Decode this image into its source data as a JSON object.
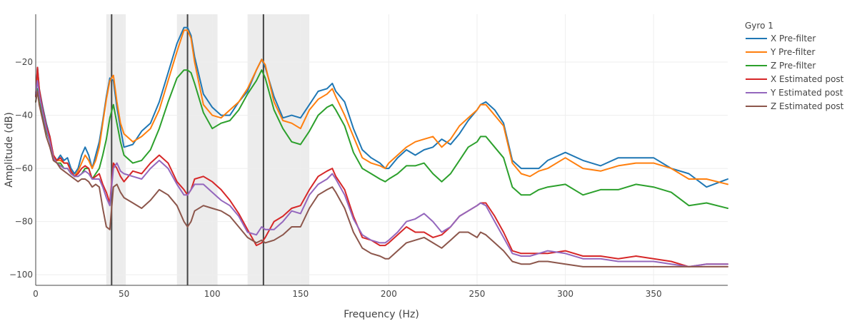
{
  "chart_data": {
    "type": "line",
    "xlabel": "Frequency (Hz)",
    "ylabel": "Amplitude (dB)",
    "xlim": [
      0,
      392
    ],
    "ylim": [
      -104,
      -2
    ],
    "xticks": [
      0,
      50,
      100,
      150,
      200,
      250,
      300,
      350
    ],
    "yticks": [
      -20,
      -40,
      -60,
      -80,
      -100
    ],
    "ytick_labels": [
      "−20",
      "−40",
      "−60",
      "−80",
      "−100"
    ],
    "grid": true,
    "legend_title": "Gyro 1",
    "legend_position": "top-right, outside plot",
    "shaded_bands": [
      {
        "from": 40,
        "to": 51
      },
      {
        "from": 80,
        "to": 103
      },
      {
        "from": 120,
        "to": 155
      }
    ],
    "vertical_lines": [
      43,
      86,
      129
    ],
    "series": [
      {
        "name": "X Pre-filter",
        "color": "#1f77b4",
        "x": [
          0,
          1,
          2,
          4,
          6,
          8,
          10,
          12,
          14,
          16,
          18,
          20,
          22,
          24,
          26,
          28,
          30,
          32,
          34,
          36,
          38,
          40,
          42,
          44,
          46,
          48,
          50,
          55,
          60,
          65,
          70,
          75,
          80,
          84,
          86,
          88,
          90,
          95,
          100,
          105,
          110,
          115,
          120,
          125,
          128,
          130,
          135,
          140,
          145,
          150,
          155,
          160,
          165,
          168,
          170,
          175,
          180,
          185,
          190,
          195,
          198,
          200,
          205,
          210,
          215,
          220,
          225,
          230,
          235,
          240,
          245,
          250,
          252,
          255,
          260,
          265,
          270,
          275,
          280,
          285,
          290,
          300,
          310,
          320,
          330,
          340,
          350,
          360,
          370,
          380,
          392
        ],
        "y": [
          -33,
          -22,
          -30,
          -37,
          -43,
          -48,
          -55,
          -57,
          -55,
          -57,
          -56,
          -60,
          -62,
          -60,
          -55,
          -52,
          -55,
          -60,
          -55,
          -50,
          -42,
          -33,
          -26,
          -27,
          -37,
          -45,
          -52,
          -51,
          -46,
          -43,
          -35,
          -24,
          -13,
          -7,
          -7,
          -10,
          -18,
          -32,
          -37,
          -40,
          -40,
          -35,
          -31,
          -23,
          -19,
          -22,
          -33,
          -41,
          -40,
          -41,
          -36,
          -31,
          -30,
          -28,
          -31,
          -35,
          -45,
          -53,
          -56,
          -58,
          -60,
          -60,
          -56,
          -53,
          -55,
          -53,
          -52,
          -49,
          -51,
          -47,
          -42,
          -38,
          -36,
          -35,
          -38,
          -43,
          -57,
          -60,
          -60,
          -60,
          -57,
          -54,
          -57,
          -59,
          -56,
          -56,
          -56,
          -60,
          -62,
          -67,
          -64
        ]
      },
      {
        "name": "Y Pre-filter",
        "color": "#ff7f0e",
        "x": [
          0,
          1,
          2,
          4,
          6,
          8,
          10,
          12,
          14,
          16,
          18,
          20,
          22,
          24,
          26,
          28,
          30,
          32,
          34,
          36,
          38,
          40,
          42,
          44,
          46,
          48,
          50,
          55,
          60,
          65,
          70,
          75,
          80,
          84,
          86,
          88,
          90,
          95,
          100,
          105,
          110,
          115,
          120,
          125,
          128,
          130,
          135,
          140,
          145,
          150,
          155,
          160,
          165,
          168,
          170,
          175,
          180,
          185,
          190,
          195,
          198,
          200,
          205,
          210,
          215,
          220,
          225,
          230,
          235,
          240,
          245,
          250,
          252,
          255,
          260,
          265,
          270,
          275,
          280,
          285,
          290,
          300,
          310,
          320,
          330,
          340,
          350,
          360,
          370,
          380,
          392
        ],
        "y": [
          -32,
          -24,
          -32,
          -38,
          -44,
          -50,
          -55,
          -57,
          -57,
          -58,
          -58,
          -61,
          -63,
          -61,
          -58,
          -55,
          -57,
          -60,
          -57,
          -52,
          -43,
          -34,
          -27,
          -25,
          -35,
          -43,
          -47,
          -50,
          -48,
          -45,
          -38,
          -27,
          -16,
          -8,
          -8,
          -11,
          -20,
          -36,
          -40,
          -41,
          -38,
          -35,
          -30,
          -23,
          -19,
          -21,
          -35,
          -42,
          -43,
          -45,
          -38,
          -34,
          -32,
          -30,
          -33,
          -40,
          -48,
          -56,
          -58,
          -59,
          -60,
          -58,
          -55,
          -52,
          -50,
          -49,
          -48,
          -52,
          -49,
          -44,
          -41,
          -38,
          -36,
          -36,
          -40,
          -44,
          -58,
          -62,
          -63,
          -61,
          -60,
          -56,
          -60,
          -61,
          -59,
          -58,
          -58,
          -60,
          -64,
          -64,
          -66
        ]
      },
      {
        "name": "Z Pre-filter",
        "color": "#2ca02c",
        "x": [
          0,
          1,
          2,
          4,
          6,
          8,
          10,
          12,
          14,
          16,
          18,
          20,
          22,
          24,
          26,
          28,
          30,
          32,
          34,
          36,
          38,
          40,
          42,
          44,
          46,
          48,
          50,
          55,
          60,
          65,
          70,
          75,
          80,
          84,
          86,
          88,
          90,
          95,
          100,
          105,
          110,
          115,
          120,
          125,
          128,
          130,
          135,
          140,
          145,
          150,
          155,
          160,
          165,
          168,
          170,
          175,
          180,
          185,
          190,
          195,
          198,
          200,
          205,
          210,
          215,
          220,
          225,
          230,
          235,
          240,
          245,
          250,
          252,
          255,
          260,
          265,
          270,
          275,
          280,
          285,
          290,
          300,
          310,
          320,
          330,
          340,
          350,
          360,
          370,
          380,
          392
        ],
        "y": [
          -35,
          -30,
          -35,
          -40,
          -46,
          -50,
          -56,
          -58,
          -58,
          -60,
          -60,
          -62,
          -63,
          -63,
          -62,
          -60,
          -60,
          -64,
          -62,
          -60,
          -55,
          -49,
          -41,
          -36,
          -43,
          -50,
          -55,
          -58,
          -57,
          -53,
          -45,
          -35,
          -26,
          -23,
          -23,
          -24,
          -28,
          -39,
          -45,
          -43,
          -42,
          -38,
          -32,
          -27,
          -23,
          -26,
          -38,
          -45,
          -50,
          -51,
          -46,
          -40,
          -37,
          -36,
          -38,
          -44,
          -54,
          -60,
          -62,
          -64,
          -65,
          -64,
          -62,
          -59,
          -59,
          -58,
          -62,
          -65,
          -62,
          -57,
          -52,
          -50,
          -48,
          -48,
          -52,
          -56,
          -67,
          -70,
          -70,
          -68,
          -67,
          -66,
          -70,
          -68,
          -68,
          -66,
          -67,
          -69,
          -74,
          -73,
          -75
        ]
      },
      {
        "name": "X Estimated post",
        "color": "#d62728",
        "x": [
          0,
          1,
          2,
          4,
          6,
          8,
          10,
          12,
          14,
          16,
          18,
          20,
          22,
          24,
          26,
          28,
          30,
          32,
          34,
          36,
          38,
          40,
          42,
          44,
          46,
          48,
          50,
          55,
          60,
          65,
          70,
          75,
          80,
          84,
          86,
          88,
          90,
          95,
          100,
          105,
          110,
          115,
          120,
          125,
          128,
          130,
          135,
          140,
          145,
          150,
          155,
          160,
          165,
          168,
          170,
          175,
          180,
          185,
          190,
          195,
          198,
          200,
          205,
          210,
          215,
          220,
          225,
          230,
          235,
          240,
          245,
          250,
          252,
          255,
          260,
          265,
          270,
          275,
          280,
          285,
          290,
          300,
          310,
          320,
          330,
          340,
          350,
          360,
          370,
          380,
          392
        ],
        "y": [
          -33,
          -22,
          -30,
          -38,
          -44,
          -48,
          -55,
          -57,
          -56,
          -58,
          -58,
          -61,
          -63,
          -62,
          -60,
          -59,
          -60,
          -64,
          -63,
          -62,
          -66,
          -69,
          -73,
          -58,
          -60,
          -63,
          -65,
          -61,
          -62,
          -58,
          -55,
          -58,
          -65,
          -68,
          -70,
          -68,
          -64,
          -63,
          -65,
          -68,
          -72,
          -77,
          -83,
          -89,
          -88,
          -86,
          -80,
          -78,
          -75,
          -74,
          -68,
          -63,
          -61,
          -60,
          -63,
          -68,
          -78,
          -86,
          -87,
          -89,
          -89,
          -88,
          -85,
          -82,
          -84,
          -84,
          -86,
          -85,
          -82,
          -78,
          -76,
          -74,
          -73,
          -73,
          -78,
          -84,
          -91,
          -92,
          -92,
          -92,
          -92,
          -91,
          -93,
          -93,
          -94,
          -93,
          -94,
          -95,
          -97,
          -96,
          -96
        ]
      },
      {
        "name": "Y Estimated post",
        "color": "#9467bd",
        "x": [
          0,
          1,
          2,
          4,
          6,
          8,
          10,
          12,
          14,
          16,
          18,
          20,
          22,
          24,
          26,
          28,
          30,
          32,
          34,
          36,
          38,
          40,
          42,
          44,
          46,
          48,
          50,
          55,
          60,
          65,
          70,
          75,
          80,
          84,
          86,
          88,
          90,
          95,
          100,
          105,
          110,
          115,
          120,
          125,
          128,
          130,
          135,
          140,
          145,
          150,
          155,
          160,
          165,
          168,
          170,
          175,
          180,
          185,
          190,
          195,
          198,
          200,
          205,
          210,
          215,
          220,
          225,
          230,
          235,
          240,
          245,
          250,
          252,
          255,
          260,
          265,
          270,
          275,
          280,
          285,
          290,
          300,
          310,
          320,
          330,
          340,
          350,
          360,
          370,
          380,
          392
        ],
        "y": [
          -32,
          -27,
          -32,
          -39,
          -45,
          -50,
          -56,
          -58,
          -59,
          -60,
          -60,
          -62,
          -63,
          -63,
          -62,
          -61,
          -62,
          -64,
          -64,
          -64,
          -67,
          -71,
          -74,
          -60,
          -58,
          -61,
          -62,
          -63,
          -64,
          -60,
          -57,
          -60,
          -66,
          -70,
          -70,
          -68,
          -66,
          -66,
          -69,
          -72,
          -74,
          -78,
          -84,
          -85,
          -82,
          -83,
          -83,
          -80,
          -76,
          -77,
          -70,
          -66,
          -64,
          -62,
          -64,
          -70,
          -79,
          -85,
          -87,
          -88,
          -88,
          -87,
          -84,
          -80,
          -79,
          -77,
          -80,
          -84,
          -82,
          -78,
          -76,
          -74,
          -73,
          -74,
          -80,
          -86,
          -92,
          -93,
          -93,
          -92,
          -91,
          -92,
          -94,
          -94,
          -95,
          -95,
          -95,
          -96,
          -97,
          -96,
          -96
        ]
      },
      {
        "name": "Z Estimated post",
        "color": "#8c564b",
        "x": [
          0,
          1,
          2,
          4,
          6,
          8,
          10,
          12,
          14,
          16,
          18,
          20,
          22,
          24,
          26,
          28,
          30,
          32,
          34,
          36,
          38,
          40,
          42,
          44,
          46,
          48,
          50,
          55,
          60,
          65,
          70,
          75,
          80,
          84,
          86,
          88,
          90,
          95,
          100,
          105,
          110,
          115,
          120,
          125,
          128,
          130,
          135,
          140,
          145,
          150,
          155,
          160,
          165,
          168,
          170,
          175,
          180,
          185,
          190,
          195,
          198,
          200,
          205,
          210,
          215,
          220,
          225,
          230,
          235,
          240,
          245,
          250,
          252,
          255,
          260,
          265,
          270,
          275,
          280,
          285,
          290,
          300,
          310,
          320,
          330,
          340,
          350,
          360,
          370,
          380,
          392
        ],
        "y": [
          -35,
          -31,
          -36,
          -42,
          -48,
          -52,
          -57,
          -58,
          -60,
          -61,
          -62,
          -63,
          -64,
          -65,
          -64,
          -64,
          -65,
          -67,
          -66,
          -67,
          -75,
          -82,
          -83,
          -67,
          -66,
          -69,
          -71,
          -73,
          -75,
          -72,
          -68,
          -70,
          -74,
          -80,
          -82,
          -80,
          -76,
          -74,
          -75,
          -76,
          -78,
          -82,
          -86,
          -88,
          -87,
          -88,
          -87,
          -85,
          -82,
          -82,
          -75,
          -70,
          -68,
          -67,
          -69,
          -75,
          -84,
          -90,
          -92,
          -93,
          -94,
          -94,
          -91,
          -88,
          -87,
          -86,
          -88,
          -90,
          -87,
          -84,
          -84,
          -86,
          -84,
          -85,
          -88,
          -91,
          -95,
          -96,
          -96,
          -95,
          -95,
          -96,
          -97,
          -97,
          -97,
          -97,
          -97,
          -97,
          -97,
          -97,
          -97
        ]
      }
    ]
  }
}
